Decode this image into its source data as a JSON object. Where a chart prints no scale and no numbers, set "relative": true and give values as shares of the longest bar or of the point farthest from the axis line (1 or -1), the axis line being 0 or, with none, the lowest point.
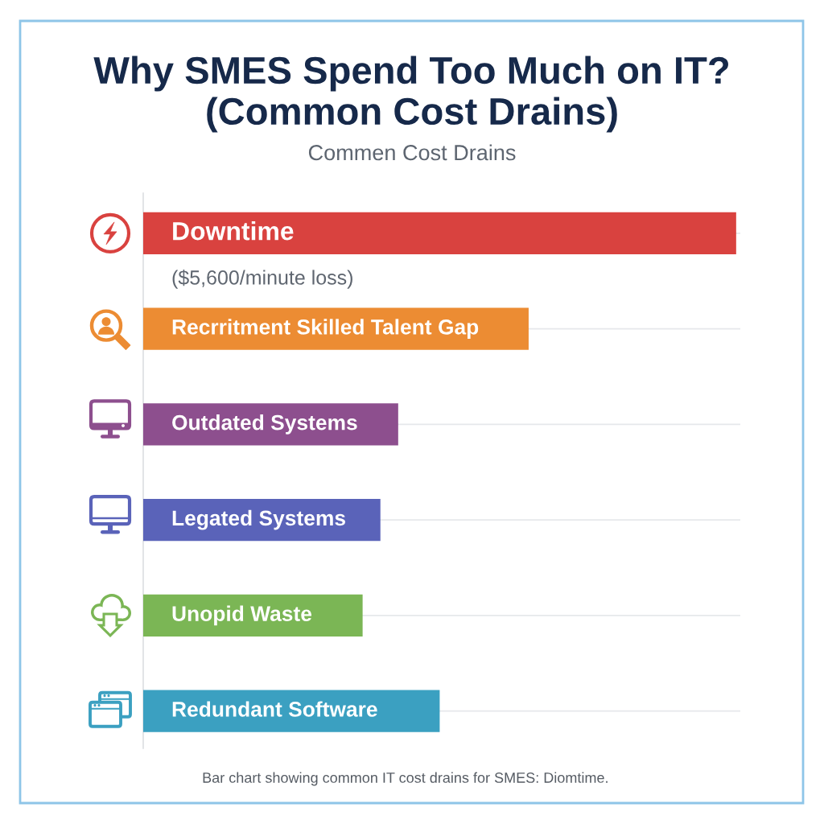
{
  "chart_data": {
    "type": "bar",
    "orientation": "horizontal",
    "relative": true,
    "title": "Why SMES Spend Too Much on IT?\n(Common Cost Drains)",
    "subtitle": "Commen Cost Drains",
    "categories": [
      "Downtime",
      "Recrritment Skilled Talent Gap",
      "Outdated Systems",
      "Legated Systems",
      "Unopid Waste",
      "Redundant Software"
    ],
    "values": [
      1,
      0.65,
      0.43,
      0.4,
      0.37,
      0.5
    ],
    "colors": [
      "#d9423f",
      "#ec8c33",
      "#8d4f8e",
      "#5a63b9",
      "#7bb655",
      "#3ba0c1"
    ],
    "grid": "y",
    "legend": false,
    "annotations": [
      "($5,600/minute loss)",
      "Bar chart showing common IT cost drains for SMES: Diomtime."
    ]
  }
}
